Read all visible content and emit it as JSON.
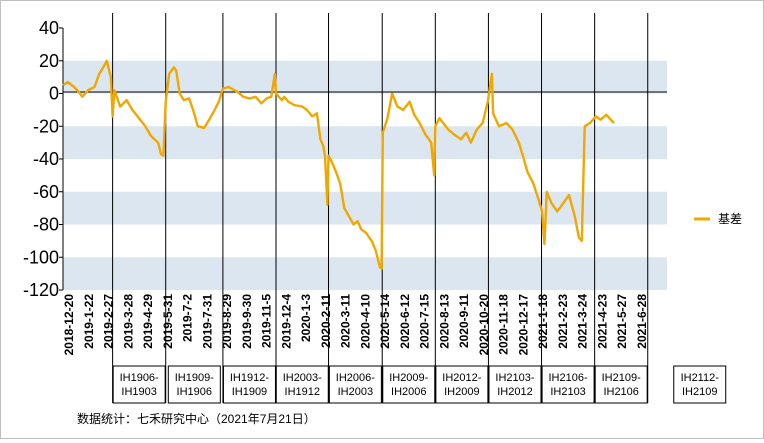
{
  "chart_data": {
    "type": "line",
    "ylim": [
      -120,
      40
    ],
    "yticks": [
      40,
      20,
      0,
      -20,
      -40,
      -60,
      -80,
      -100,
      -120
    ],
    "shaded_bands": [
      [
        0,
        20
      ],
      [
        -40,
        -20
      ],
      [
        -80,
        -60
      ],
      [
        -120,
        -100
      ]
    ],
    "grid": false,
    "legend_position": "right",
    "series": [
      {
        "name": "基差",
        "color": "#f0a800",
        "points": [
          [
            "2018-12-20",
            5
          ],
          [
            "2018-12-28",
            7
          ],
          [
            "2019-01-08",
            4
          ],
          [
            "2019-01-16",
            1
          ],
          [
            "2019-01-22",
            -2
          ],
          [
            "2019-02-01",
            2
          ],
          [
            "2019-02-12",
            4
          ],
          [
            "2019-02-20",
            12
          ],
          [
            "2019-02-27",
            16
          ],
          [
            "2019-03-05",
            20
          ],
          [
            "2019-03-12",
            10
          ],
          [
            "2019-03-15",
            -14
          ],
          [
            "2019-03-18",
            2
          ],
          [
            "2019-03-28",
            -8
          ],
          [
            "2019-04-08",
            -4
          ],
          [
            "2019-04-18",
            -10
          ],
          [
            "2019-04-29",
            -15
          ],
          [
            "2019-05-10",
            -20
          ],
          [
            "2019-05-20",
            -26
          ],
          [
            "2019-06-01",
            -30
          ],
          [
            "2019-06-06",
            -37
          ],
          [
            "2019-06-10",
            -38
          ],
          [
            "2019-06-14",
            -5
          ],
          [
            "2019-06-20",
            12
          ],
          [
            "2019-06-28",
            16
          ],
          [
            "2019-07-02",
            14
          ],
          [
            "2019-07-08",
            0
          ],
          [
            "2019-07-15",
            -4
          ],
          [
            "2019-07-24",
            -3
          ],
          [
            "2019-07-31",
            -10
          ],
          [
            "2019-08-08",
            -20
          ],
          [
            "2019-08-19",
            -21
          ],
          [
            "2019-08-29",
            -15
          ],
          [
            "2019-09-06",
            -10
          ],
          [
            "2019-09-13",
            -5
          ],
          [
            "2019-09-20",
            3
          ],
          [
            "2019-09-30",
            4
          ],
          [
            "2019-10-15",
            1
          ],
          [
            "2019-10-25",
            -2
          ],
          [
            "2019-11-05",
            -3
          ],
          [
            "2019-11-15",
            -2
          ],
          [
            "2019-11-25",
            -6
          ],
          [
            "2019-12-04",
            -3
          ],
          [
            "2019-12-12",
            -2
          ],
          [
            "2019-12-18",
            12
          ],
          [
            "2019-12-20",
            0
          ],
          [
            "2019-12-30",
            -4
          ],
          [
            "2020-01-03",
            -2
          ],
          [
            "2020-01-10",
            -5
          ],
          [
            "2020-01-20",
            -7
          ],
          [
            "2020-02-03",
            -8
          ],
          [
            "2020-02-11",
            -10
          ],
          [
            "2020-02-20",
            -14
          ],
          [
            "2020-02-28",
            -12
          ],
          [
            "2020-03-05",
            -28
          ],
          [
            "2020-03-10",
            -32
          ],
          [
            "2020-03-13",
            -38
          ],
          [
            "2020-03-17",
            -68
          ],
          [
            "2020-03-19",
            -38
          ],
          [
            "2020-03-25",
            -42
          ],
          [
            "2020-04-01",
            -48
          ],
          [
            "2020-04-08",
            -55
          ],
          [
            "2020-04-15",
            -70
          ],
          [
            "2020-04-23",
            -75
          ],
          [
            "2020-05-01",
            -80
          ],
          [
            "2020-05-08",
            -78
          ],
          [
            "2020-05-14",
            -83
          ],
          [
            "2020-05-22",
            -85
          ],
          [
            "2020-06-01",
            -90
          ],
          [
            "2020-06-08",
            -96
          ],
          [
            "2020-06-15",
            -106
          ],
          [
            "2020-06-18",
            -107
          ],
          [
            "2020-06-20",
            -24
          ],
          [
            "2020-06-28",
            -15
          ],
          [
            "2020-07-06",
            0
          ],
          [
            "2020-07-15",
            -8
          ],
          [
            "2020-07-25",
            -10
          ],
          [
            "2020-08-05",
            -5
          ],
          [
            "2020-08-13",
            -13
          ],
          [
            "2020-08-22",
            -18
          ],
          [
            "2020-09-01",
            -25
          ],
          [
            "2020-09-11",
            -30
          ],
          [
            "2020-09-16",
            -50
          ],
          [
            "2020-09-18",
            -20
          ],
          [
            "2020-09-25",
            -15
          ],
          [
            "2020-10-10",
            -22
          ],
          [
            "2020-10-20",
            -25
          ],
          [
            "2020-11-01",
            -28
          ],
          [
            "2020-11-10",
            -24
          ],
          [
            "2020-11-18",
            -30
          ],
          [
            "2020-11-28",
            -22
          ],
          [
            "2020-12-08",
            -18
          ],
          [
            "2020-12-17",
            -5
          ],
          [
            "2020-12-24",
            12
          ],
          [
            "2020-12-26",
            -12
          ],
          [
            "2021-01-05",
            -20
          ],
          [
            "2021-01-18",
            -18
          ],
          [
            "2021-01-28",
            -22
          ],
          [
            "2021-02-08",
            -30
          ],
          [
            "2021-02-15",
            -38
          ],
          [
            "2021-02-23",
            -48
          ],
          [
            "2021-03-05",
            -55
          ],
          [
            "2021-03-15",
            -66
          ],
          [
            "2021-03-20",
            -72
          ],
          [
            "2021-03-24",
            -92
          ],
          [
            "2021-03-28",
            -60
          ],
          [
            "2021-04-05",
            -67
          ],
          [
            "2021-04-15",
            -72
          ],
          [
            "2021-04-23",
            -68
          ],
          [
            "2021-05-05",
            -62
          ],
          [
            "2021-05-15",
            -75
          ],
          [
            "2021-05-22",
            -88
          ],
          [
            "2021-05-27",
            -90
          ],
          [
            "2021-06-01",
            -20
          ],
          [
            "2021-06-10",
            -18
          ],
          [
            "2021-06-20",
            -14
          ],
          [
            "2021-06-28",
            -16
          ],
          [
            "2021-07-08",
            -13
          ],
          [
            "2021-07-21",
            -18
          ]
        ]
      }
    ],
    "date_range": [
      "2018-12-20",
      "2021-10-20"
    ],
    "x_tick_labels": [
      "2018-12-20",
      "2019-1-22",
      "2019-2-27",
      "2019-3-28",
      "2019-4-29",
      "2019-5-31",
      "2019-7-2",
      "2019-7-31",
      "2019-8-29",
      "2019-9-30",
      "2019-11-5",
      "2019-12-4",
      "2020-1-3",
      "2020-2-11",
      "2020-3-11",
      "2020-4-10",
      "2020-5-14",
      "2020-6-12",
      "2020-7-15",
      "2020-8-13",
      "2020-9-11",
      "2020-10-20",
      "2020-11-18",
      "2020-12-17",
      "2021-1-18",
      "2021-2-23",
      "2021-3-24",
      "2021-4-23",
      "2021-5-27",
      "2021-6-28"
    ],
    "contract_dividers": [
      "2019-03-15",
      "2019-06-14",
      "2019-09-20",
      "2019-12-20",
      "2020-03-19",
      "2020-06-19",
      "2020-09-18",
      "2020-12-18",
      "2021-03-19",
      "2021-06-18",
      "2021-09-17"
    ],
    "contract_boxes": [
      {
        "line1": "IH1906-",
        "line2": "IH1903"
      },
      {
        "line1": "IH1909-",
        "line2": "IH1906"
      },
      {
        "line1": "IH1912-",
        "line2": "IH1909"
      },
      {
        "line1": "IH2003-",
        "line2": "IH1912"
      },
      {
        "line1": "IH2006-",
        "line2": "IH2003"
      },
      {
        "line1": "IH2009-",
        "line2": "IH2006"
      },
      {
        "line1": "IH2012-",
        "line2": "IH2009"
      },
      {
        "line1": "IH2103-",
        "line2": "IH2012"
      },
      {
        "line1": "IH2106-",
        "line2": "IH2103"
      },
      {
        "line1": "IH2109-",
        "line2": "IH2106"
      },
      {
        "line1": "IH2112-",
        "line2": "IH2109"
      }
    ]
  },
  "source_note": "数据统计：七禾研究中心（2021年7月21日）"
}
